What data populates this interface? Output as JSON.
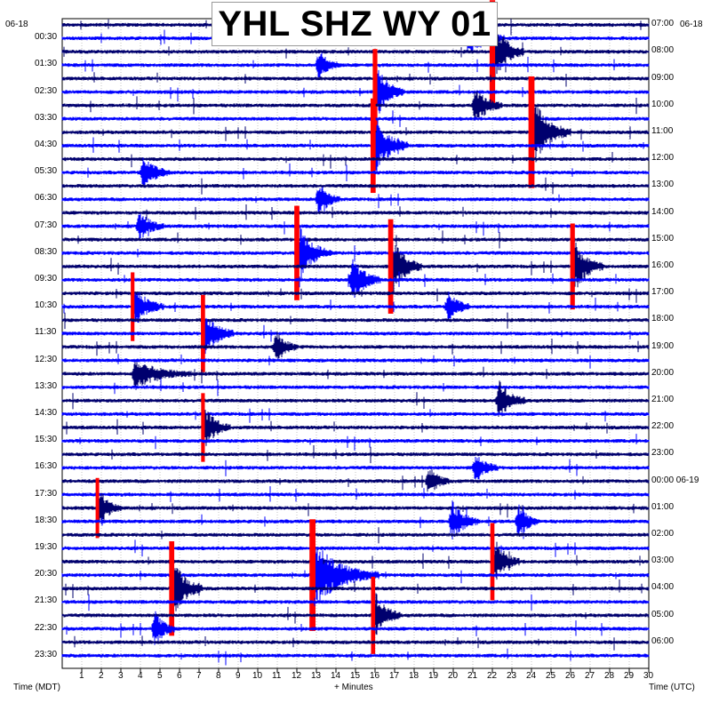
{
  "chart_data": {
    "type": "line",
    "title": "YHL SHZ WY 01",
    "date_left": "06-18",
    "date_right": "06-18",
    "left_axis_label": "Time (MDT)",
    "right_axis_label": "Time (UTC)",
    "xlabel": "+ Minutes",
    "x_ticks": [
      "1",
      "2",
      "3",
      "4",
      "5",
      "6",
      "7",
      "8",
      "9",
      "10",
      "11",
      "12",
      "13",
      "14",
      "15",
      "16",
      "17",
      "18",
      "19",
      "20",
      "21",
      "22",
      "23",
      "24",
      "25",
      "26",
      "27",
      "28",
      "29",
      "30"
    ],
    "xlim": [
      0,
      30
    ],
    "left_ticks": [
      "00:30",
      "01:30",
      "02:30",
      "03:30",
      "04:30",
      "05:30",
      "06:30",
      "07:30",
      "08:30",
      "09:30",
      "10:30",
      "11:30",
      "12:30",
      "13:30",
      "14:30",
      "15:30",
      "16:30",
      "17:30",
      "18:30",
      "19:30",
      "20:30",
      "21:30",
      "22:30",
      "23:30"
    ],
    "right_ticks": [
      "07:00",
      "08:00",
      "09:00",
      "10:00",
      "11:00",
      "12:00",
      "13:00",
      "14:00",
      "15:00",
      "16:00",
      "17:00",
      "18:00",
      "19:00",
      "20:00",
      "21:00",
      "22:00",
      "23:00",
      "00:00 06-19",
      "01:00",
      "02:00",
      "03:00",
      "04:00",
      "05:00",
      "06:00"
    ],
    "traces_per_hour": 2,
    "trace_count": 48,
    "colors": {
      "trace_a": "#00006e",
      "trace_b": "#0000ff",
      "clipped": "#ff0000",
      "grid": "#888888"
    },
    "events": [
      {
        "row": 1,
        "minute": 20.6,
        "amp": 1.6,
        "dur": 2.0
      },
      {
        "row": 2,
        "minute": 22.0,
        "amp": 2.4,
        "dur": 1.6,
        "clip": true
      },
      {
        "row": 3,
        "minute": 13.0,
        "amp": 1.2,
        "dur": 1.2
      },
      {
        "row": 5,
        "minute": 16.0,
        "amp": 2.0,
        "dur": 1.5,
        "clip": true
      },
      {
        "row": 6,
        "minute": 21.0,
        "amp": 1.6,
        "dur": 1.5
      },
      {
        "row": 8,
        "minute": 24.0,
        "amp": 2.6,
        "dur": 2.0,
        "clip": true
      },
      {
        "row": 9,
        "minute": 15.9,
        "amp": 2.2,
        "dur": 1.8,
        "clip": true
      },
      {
        "row": 11,
        "minute": 4.0,
        "amp": 1.4,
        "dur": 1.5
      },
      {
        "row": 13,
        "minute": 13.0,
        "amp": 1.4,
        "dur": 1.2
      },
      {
        "row": 15,
        "minute": 3.8,
        "amp": 1.2,
        "dur": 1.4
      },
      {
        "row": 17,
        "minute": 12.0,
        "amp": 2.2,
        "dur": 1.8,
        "clip": true
      },
      {
        "row": 18,
        "minute": 16.8,
        "amp": 2.2,
        "dur": 1.6,
        "clip": true
      },
      {
        "row": 18,
        "minute": 26.1,
        "amp": 2.0,
        "dur": 1.6,
        "clip": true
      },
      {
        "row": 19,
        "minute": 14.7,
        "amp": 1.8,
        "dur": 1.6
      },
      {
        "row": 21,
        "minute": 3.6,
        "amp": 1.6,
        "dur": 1.6,
        "clip": true
      },
      {
        "row": 21,
        "minute": 19.6,
        "amp": 1.4,
        "dur": 1.2
      },
      {
        "row": 23,
        "minute": 7.2,
        "amp": 1.8,
        "dur": 1.6,
        "clip": true
      },
      {
        "row": 24,
        "minute": 10.8,
        "amp": 1.4,
        "dur": 1.2
      },
      {
        "row": 26,
        "minute": 3.6,
        "amp": 1.2,
        "dur": 3.0
      },
      {
        "row": 28,
        "minute": 22.2,
        "amp": 1.6,
        "dur": 1.5
      },
      {
        "row": 30,
        "minute": 7.2,
        "amp": 1.6,
        "dur": 1.4,
        "clip": true
      },
      {
        "row": 33,
        "minute": 21.0,
        "amp": 1.2,
        "dur": 1.3
      },
      {
        "row": 34,
        "minute": 18.6,
        "amp": 1.2,
        "dur": 1.2
      },
      {
        "row": 36,
        "minute": 1.8,
        "amp": 1.4,
        "dur": 1.2,
        "clip": true
      },
      {
        "row": 37,
        "minute": 19.8,
        "amp": 1.6,
        "dur": 1.5
      },
      {
        "row": 37,
        "minute": 23.2,
        "amp": 1.4,
        "dur": 1.2
      },
      {
        "row": 40,
        "minute": 22.0,
        "amp": 1.8,
        "dur": 1.4,
        "clip": true
      },
      {
        "row": 41,
        "minute": 12.8,
        "amp": 2.6,
        "dur": 3.4,
        "clip": true
      },
      {
        "row": 42,
        "minute": 5.6,
        "amp": 2.2,
        "dur": 1.6,
        "clip": true
      },
      {
        "row": 44,
        "minute": 15.9,
        "amp": 1.8,
        "dur": 1.4,
        "clip": true
      },
      {
        "row": 45,
        "minute": 4.6,
        "amp": 1.4,
        "dur": 1.2
      }
    ]
  }
}
